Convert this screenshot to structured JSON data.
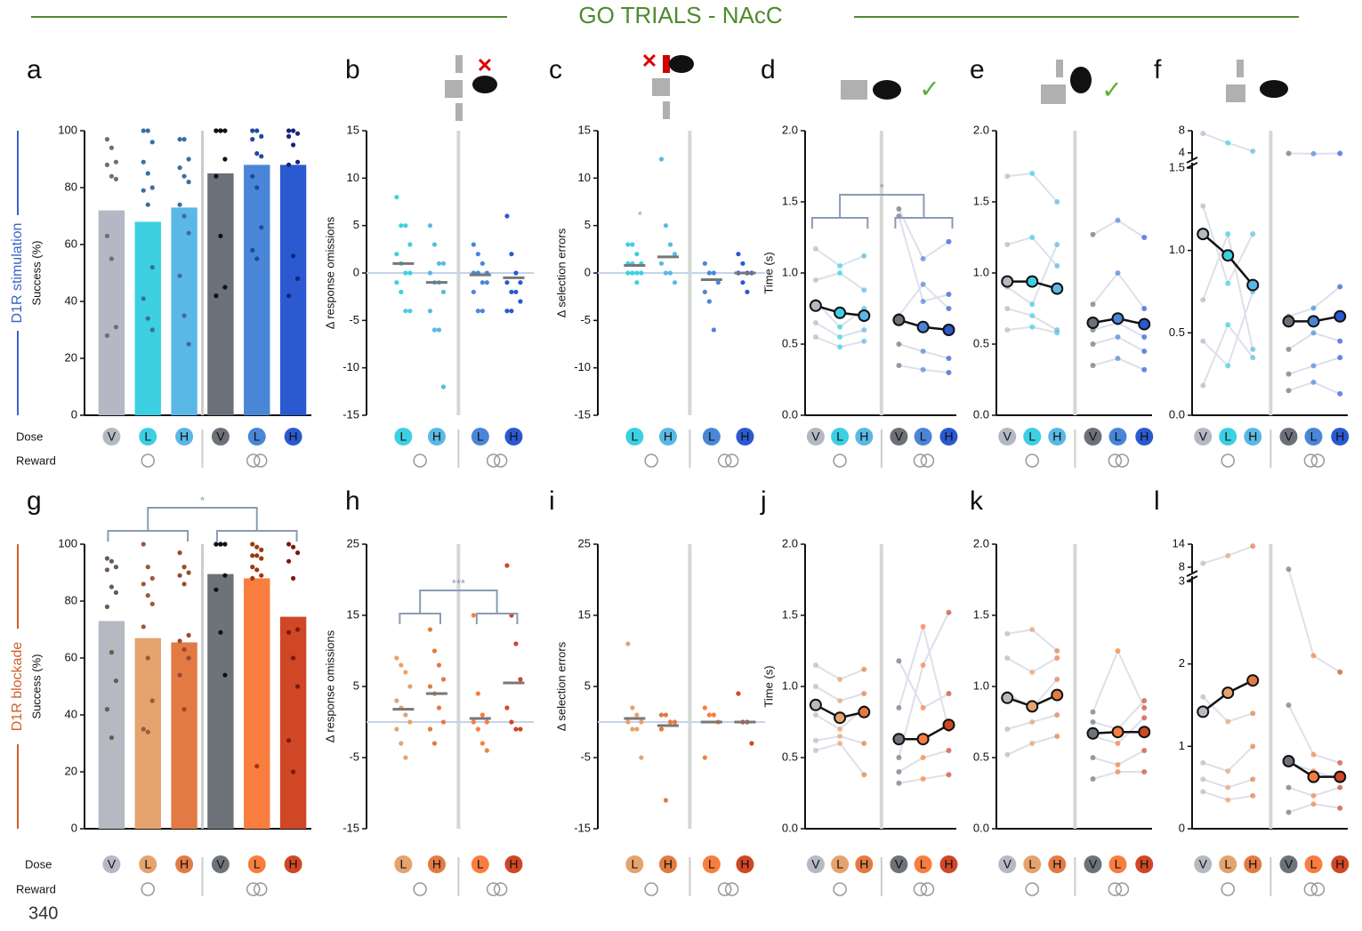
{
  "title": "GO TRIALS - NAcC",
  "footer": "340",
  "chart_data": [
    {
      "panel": "a",
      "type": "bar",
      "ylabel": "Success (%)",
      "side_label": "D1R stimulation",
      "side_color": "#3a62c8",
      "dose_label": "Dose",
      "reward_label": "Reward",
      "ylim": [
        0,
        100
      ],
      "yticks": [
        0,
        20,
        40,
        60,
        80,
        100
      ],
      "categories": [
        "V",
        "L",
        "H",
        "V",
        "L",
        "H"
      ],
      "colors": [
        "#b3b8c4",
        "#3cd0e2",
        "#5ab8e6",
        "#6c7079",
        "#4a86d8",
        "#2a59d0"
      ],
      "values": [
        72,
        68,
        73,
        85,
        88,
        88
      ],
      "point_colors": [
        "#6b6f78",
        "#3a6ea0",
        "#3a6ea0",
        "#111111",
        "#1e4a9e",
        "#13267a"
      ],
      "points": [
        [
          97,
          94,
          89,
          88,
          84,
          83,
          63,
          55,
          31,
          28
        ],
        [
          100,
          100,
          96,
          89,
          85,
          80,
          79,
          74,
          52,
          41,
          34,
          30
        ],
        [
          97,
          97,
          90,
          87,
          84,
          82,
          74,
          70,
          64,
          49,
          35,
          25
        ],
        [
          100,
          100,
          100,
          100,
          100,
          90,
          84,
          63,
          45,
          42
        ],
        [
          100,
          100,
          98,
          97,
          92,
          91,
          84,
          80,
          66,
          58,
          55
        ],
        [
          100,
          100,
          99,
          98,
          95,
          89,
          88,
          56,
          48,
          42
        ]
      ]
    },
    {
      "panel": "b",
      "type": "strip",
      "ylabel": "Δ response omissions",
      "ylim": [
        -15,
        15
      ],
      "yticks": [
        -15,
        -10,
        -5,
        0,
        5,
        10,
        15
      ],
      "categories": [
        "L",
        "H",
        "L",
        "H"
      ],
      "colors": [
        "#3cd0e2",
        "#5ab8e6",
        "#4a86d8",
        "#2a59d0"
      ],
      "values": [
        1,
        -1,
        -0.2,
        -0.5
      ],
      "points": [
        [
          8,
          5,
          5,
          3,
          2,
          1,
          0,
          0,
          -1,
          -2,
          -4,
          -4
        ],
        [
          5,
          3,
          1,
          1,
          0,
          -1,
          -1,
          -2,
          -4,
          -6,
          -6,
          -12
        ],
        [
          3,
          2,
          1,
          0,
          0,
          0,
          -1,
          -1,
          -2,
          -4,
          -4
        ],
        [
          6,
          2,
          0,
          -1,
          -1,
          -2,
          -2,
          -3,
          -4,
          -4
        ]
      ]
    },
    {
      "panel": "c",
      "type": "strip",
      "ylabel": "Δ selection errors",
      "annotation": "*",
      "ylim": [
        -15,
        15
      ],
      "yticks": [
        -15,
        -10,
        -5,
        0,
        5,
        10,
        15
      ],
      "categories": [
        "L",
        "H",
        "L",
        "H"
      ],
      "colors": [
        "#3cd0e2",
        "#5ab8e6",
        "#4a86d8",
        "#2a59d0"
      ],
      "values": [
        0.8,
        1.7,
        -0.7,
        0
      ],
      "points": [
        [
          3,
          3,
          2,
          1,
          1,
          1,
          0,
          0,
          0,
          0,
          -1
        ],
        [
          12,
          5,
          3,
          2,
          1,
          0,
          0,
          -1
        ],
        [
          1,
          0,
          0,
          -1,
          -2,
          -3,
          -6
        ],
        [
          2,
          1,
          0,
          0,
          0,
          -1,
          -2
        ]
      ]
    },
    {
      "panel": "d",
      "type": "line",
      "ylabel": "Time (s)",
      "significance": "*",
      "ylim": [
        0,
        2
      ],
      "yticks": [
        {
          "value": 0,
          "label": "0.0"
        },
        0.5,
        {
          "value": 1,
          "label": "1.0"
        },
        1.5,
        {
          "value": 2,
          "label": "2.0"
        }
      ],
      "categories": [
        "V",
        "L",
        "H",
        "V",
        "L",
        "H"
      ],
      "colors": [
        "#b3b8c4",
        "#3cd0e2",
        "#5ab8e6",
        "#6c7079",
        "#4a86d8",
        "#2a59d0"
      ],
      "values": [
        0.77,
        0.72,
        0.7,
        0.67,
        0.62,
        0.6
      ],
      "lines_left": [
        [
          1.17,
          1.05,
          1.12
        ],
        [
          0.95,
          1.0,
          0.88
        ],
        [
          0.8,
          0.62,
          0.75
        ],
        [
          0.65,
          0.55,
          0.6
        ],
        [
          0.55,
          0.48,
          0.52
        ]
      ],
      "lines_right": [
        [
          1.45,
          1.1,
          1.22
        ],
        [
          1.4,
          0.8,
          0.85
        ],
        [
          0.7,
          0.92,
          0.75
        ],
        [
          0.5,
          0.45,
          0.4
        ],
        [
          0.35,
          0.32,
          0.3
        ]
      ]
    },
    {
      "panel": "e",
      "type": "line",
      "ylim": [
        0,
        2
      ],
      "yticks": [
        {
          "value": 0,
          "label": "0.0"
        },
        0.5,
        {
          "value": 1,
          "label": "1.0"
        },
        1.5,
        {
          "value": 2,
          "label": "2.0"
        }
      ],
      "categories": [
        "V",
        "L",
        "H",
        "V",
        "L",
        "H"
      ],
      "colors": [
        "#b3b8c4",
        "#3cd0e2",
        "#5ab8e6",
        "#6c7079",
        "#4a86d8",
        "#2a59d0"
      ],
      "values": [
        0.94,
        0.94,
        0.89,
        0.65,
        0.68,
        0.64
      ],
      "lines_left": [
        [
          1.68,
          1.7,
          1.5
        ],
        [
          1.2,
          1.25,
          1.05
        ],
        [
          0.9,
          0.78,
          1.2
        ],
        [
          0.75,
          0.7,
          0.6
        ],
        [
          0.6,
          0.62,
          0.58
        ]
      ],
      "lines_right": [
        [
          1.27,
          1.37,
          1.25
        ],
        [
          0.78,
          1.0,
          0.75
        ],
        [
          0.6,
          0.65,
          0.55
        ],
        [
          0.5,
          0.55,
          0.45
        ],
        [
          0.35,
          0.4,
          0.32
        ]
      ]
    },
    {
      "panel": "f",
      "type": "line",
      "ylim": [
        0,
        1.5
      ],
      "yticks": [
        {
          "value": 0,
          "label": "0.0"
        },
        0.5,
        {
          "value": 1,
          "label": "1.0"
        },
        1.5
      ],
      "break": {
        "ylim": [
          3.5,
          8
        ],
        "yticks": [
          4,
          8
        ]
      },
      "categories": [
        "V",
        "L",
        "H",
        "V",
        "L",
        "H"
      ],
      "colors": [
        "#b3b8c4",
        "#3cd0e2",
        "#5ab8e6",
        "#6c7079",
        "#4a86d8",
        "#2a59d0"
      ],
      "values": [
        1.1,
        0.97,
        0.79,
        0.57,
        0.57,
        0.6
      ],
      "lines_left": [
        [
          7.5,
          5.8,
          4.3
        ],
        [
          1.27,
          0.8,
          1.1
        ],
        [
          0.7,
          1.1,
          0.4
        ],
        [
          0.45,
          0.3,
          0.75
        ],
        [
          0.18,
          0.55,
          0.35
        ]
      ],
      "lines_right": [
        [
          3.9,
          3.85,
          3.9
        ],
        [
          0.6,
          0.65,
          0.78
        ],
        [
          0.4,
          0.5,
          0.45
        ],
        [
          0.25,
          0.3,
          0.35
        ],
        [
          0.15,
          0.2,
          0.13
        ]
      ]
    },
    {
      "panel": "g",
      "type": "bar",
      "ylabel": "Success (%)",
      "side_label": "D1R blockade",
      "side_color": "#d0602a",
      "dose_label": "Dose",
      "reward_label": "Reward",
      "significance": "*",
      "ylim": [
        0,
        100
      ],
      "yticks": [
        0,
        20,
        40,
        60,
        80,
        100
      ],
      "categories": [
        "V",
        "L",
        "H",
        "V",
        "L",
        "H"
      ],
      "colors": [
        "#b5b9c2",
        "#e5a36e",
        "#e27b43",
        "#6e737a",
        "#f97d3e",
        "#d04726"
      ],
      "values": [
        73,
        67,
        65.5,
        89.5,
        88,
        74.5
      ],
      "point_colors": [
        "#6b5a55",
        "#9a5a3a",
        "#9a4a2a",
        "#111111",
        "#9a3a10",
        "#7a1a10"
      ],
      "points": [
        [
          95,
          94,
          92,
          91,
          85,
          83,
          78,
          62,
          52,
          42,
          32
        ],
        [
          100,
          92,
          88,
          86,
          82,
          79,
          71,
          60,
          45,
          35,
          34
        ],
        [
          97,
          92,
          90,
          89,
          86,
          68,
          66,
          63,
          60,
          54,
          42
        ],
        [
          100,
          100,
          100,
          100,
          100,
          89,
          84,
          69,
          54
        ],
        [
          100,
          99,
          98,
          96,
          96,
          95,
          92,
          91,
          89,
          88,
          22
        ],
        [
          100,
          99,
          97,
          94,
          88,
          70,
          69,
          60,
          50,
          31,
          20
        ]
      ]
    },
    {
      "panel": "h",
      "type": "strip",
      "ylabel": "Δ response omissions",
      "significance": "***",
      "ylim": [
        -15,
        25
      ],
      "yticks": [
        -15,
        -5,
        5,
        15,
        25
      ],
      "categories": [
        "L",
        "H",
        "L",
        "H"
      ],
      "colors": [
        "#e5a36e",
        "#e27b43",
        "#f97d3e",
        "#d04726"
      ],
      "values": [
        1.8,
        4,
        0.5,
        5.5
      ],
      "points": [
        [
          9,
          8,
          7,
          5,
          3,
          2,
          1,
          0,
          -1,
          -3,
          -5
        ],
        [
          13,
          10,
          8,
          6,
          5,
          4,
          2,
          0,
          -1,
          -3
        ],
        [
          15,
          4,
          1,
          0,
          0,
          -1,
          -3,
          -4
        ],
        [
          22,
          15,
          11,
          6,
          2,
          0,
          -1,
          -1
        ]
      ]
    },
    {
      "panel": "i",
      "type": "strip",
      "ylabel": "Δ selection errors",
      "ylim": [
        -15,
        25
      ],
      "yticks": [
        -15,
        -5,
        5,
        15,
        25
      ],
      "categories": [
        "L",
        "H",
        "L",
        "H"
      ],
      "colors": [
        "#e5a36e",
        "#e27b43",
        "#f97d3e",
        "#d04726"
      ],
      "values": [
        0.5,
        -0.5,
        0,
        0
      ],
      "points": [
        [
          11,
          2,
          1,
          0,
          0,
          -1,
          -1,
          -5
        ],
        [
          1,
          1,
          0,
          0,
          -1,
          -11
        ],
        [
          2,
          1,
          1,
          0,
          -5
        ],
        [
          4,
          0,
          0,
          -3
        ]
      ]
    },
    {
      "panel": "j",
      "type": "line",
      "ylabel": "Time (s)",
      "ylim": [
        0,
        2
      ],
      "yticks": [
        {
          "value": 0,
          "label": "0.0"
        },
        0.5,
        {
          "value": 1,
          "label": "1.0"
        },
        1.5,
        {
          "value": 2,
          "label": "2.0"
        }
      ],
      "categories": [
        "V",
        "L",
        "H",
        "V",
        "L",
        "H"
      ],
      "colors": [
        "#b5b9c2",
        "#e5a36e",
        "#e27b43",
        "#6e737a",
        "#f97d3e",
        "#d04726"
      ],
      "values": [
        0.87,
        0.78,
        0.82,
        0.63,
        0.63,
        0.73
      ],
      "lines_left": [
        [
          1.15,
          1.05,
          1.12
        ],
        [
          1.0,
          0.9,
          0.95
        ],
        [
          0.8,
          0.7,
          0.85
        ],
        [
          0.62,
          0.65,
          0.6
        ],
        [
          0.55,
          0.6,
          0.38
        ]
      ],
      "lines_right": [
        [
          1.18,
          0.85,
          0.95
        ],
        [
          0.85,
          1.42,
          0.7
        ],
        [
          0.5,
          1.15,
          1.52
        ],
        [
          0.4,
          0.5,
          0.55
        ],
        [
          0.32,
          0.35,
          0.38
        ]
      ]
    },
    {
      "panel": "k",
      "type": "line",
      "ylim": [
        0,
        2
      ],
      "yticks": [
        {
          "value": 0,
          "label": "0.0"
        },
        0.5,
        {
          "value": 1,
          "label": "1.0"
        },
        1.5,
        {
          "value": 2,
          "label": "2.0"
        }
      ],
      "categories": [
        "V",
        "L",
        "H",
        "V",
        "L",
        "H"
      ],
      "colors": [
        "#b5b9c2",
        "#e5a36e",
        "#e27b43",
        "#6e737a",
        "#f97d3e",
        "#d04726"
      ],
      "values": [
        0.92,
        0.86,
        0.94,
        0.67,
        0.68,
        0.68
      ],
      "lines_left": [
        [
          1.37,
          1.4,
          1.25
        ],
        [
          1.2,
          1.1,
          1.2
        ],
        [
          0.95,
          0.85,
          1.05
        ],
        [
          0.7,
          0.75,
          0.8
        ],
        [
          0.52,
          0.6,
          0.65
        ]
      ],
      "lines_right": [
        [
          0.82,
          1.25,
          0.85
        ],
        [
          0.75,
          0.7,
          0.9
        ],
        [
          0.65,
          0.6,
          0.78
        ],
        [
          0.5,
          0.45,
          0.55
        ],
        [
          0.35,
          0.4,
          0.4
        ]
      ]
    },
    {
      "panel": "l",
      "type": "line",
      "ylim": [
        0,
        3
      ],
      "yticks": [
        0,
        1,
        2,
        3
      ],
      "break": {
        "ylim": [
          7.5,
          14
        ],
        "yticks": [
          8,
          14
        ]
      },
      "categories": [
        "V",
        "L",
        "H",
        "V",
        "L",
        "H"
      ],
      "colors": [
        "#b5b9c2",
        "#e5a36e",
        "#e27b43",
        "#6e737a",
        "#f97d3e",
        "#d04726"
      ],
      "values": [
        1.42,
        1.65,
        1.8,
        0.82,
        0.63,
        0.63
      ],
      "lines_left": [
        [
          9,
          11,
          13.5
        ],
        [
          1.6,
          1.3,
          1.4
        ],
        [
          0.8,
          0.7,
          1.0
        ],
        [
          0.6,
          0.5,
          0.6
        ],
        [
          0.45,
          0.35,
          0.4
        ]
      ],
      "lines_right": [
        [
          3.15,
          2.1,
          1.9
        ],
        [
          1.5,
          0.9,
          0.8
        ],
        [
          0.8,
          0.7,
          0.6
        ],
        [
          0.5,
          0.4,
          0.5
        ],
        [
          0.2,
          0.3,
          0.25
        ]
      ]
    }
  ]
}
